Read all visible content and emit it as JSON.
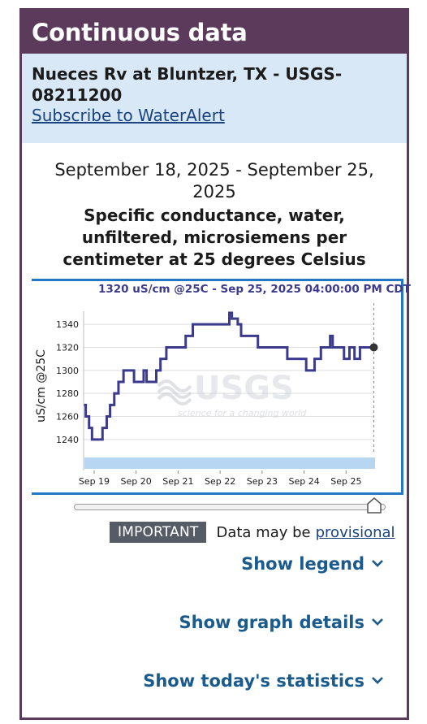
{
  "header": {
    "title": "Continuous data"
  },
  "site": {
    "name": "Nueces Rv at Bluntzer, TX - USGS-08211200",
    "subscribe_link": "Subscribe to WaterAlert"
  },
  "graph": {
    "date_range": "September 18, 2025 - September 25, 2025",
    "parameter_title": "Specific conductance, water, unfiltered, microsiemens per centimeter at 25 degrees Celsius",
    "tooltip": "1320 uS/cm @25C - Sep 25, 2025 04:00:00 PM CDT",
    "watermark_logo": "USGS",
    "watermark_tagline": "science for a changing world"
  },
  "chart_data": {
    "type": "line",
    "ylabel": "uS/cm @25C",
    "xlabel": "",
    "ylim": [
      1230,
      1350
    ],
    "yticks": [
      1240,
      1260,
      1280,
      1300,
      1320,
      1340
    ],
    "xticks": [
      "Sep 19",
      "Sep 20",
      "Sep 21",
      "Sep 22",
      "Sep 23",
      "Sep 24",
      "Sep 25"
    ],
    "x_range_days": [
      18.75,
      25.67
    ],
    "grid": true,
    "series": [
      {
        "color": "#3c3a8c",
        "points": [
          [
            18.76,
            1270
          ],
          [
            18.8,
            1260
          ],
          [
            18.88,
            1250
          ],
          [
            18.95,
            1240
          ],
          [
            19.15,
            1240
          ],
          [
            19.2,
            1250
          ],
          [
            19.3,
            1260
          ],
          [
            19.38,
            1270
          ],
          [
            19.48,
            1280
          ],
          [
            19.58,
            1290
          ],
          [
            19.7,
            1300
          ],
          [
            19.88,
            1300
          ],
          [
            19.95,
            1290
          ],
          [
            20.1,
            1290
          ],
          [
            20.18,
            1300
          ],
          [
            20.25,
            1290
          ],
          [
            20.4,
            1290
          ],
          [
            20.48,
            1300
          ],
          [
            20.58,
            1310
          ],
          [
            20.72,
            1320
          ],
          [
            21.0,
            1320
          ],
          [
            21.1,
            1320
          ],
          [
            21.18,
            1330
          ],
          [
            21.35,
            1340
          ],
          [
            22.2,
            1340
          ],
          [
            22.22,
            1350
          ],
          [
            22.28,
            1345
          ],
          [
            22.35,
            1345
          ],
          [
            22.42,
            1340
          ],
          [
            22.5,
            1330
          ],
          [
            22.7,
            1330
          ],
          [
            22.9,
            1320
          ],
          [
            23.4,
            1320
          ],
          [
            23.55,
            1320
          ],
          [
            23.6,
            1310
          ],
          [
            23.95,
            1310
          ],
          [
            24.05,
            1300
          ],
          [
            24.2,
            1300
          ],
          [
            24.25,
            1310
          ],
          [
            24.4,
            1320
          ],
          [
            24.6,
            1320
          ],
          [
            24.62,
            1330
          ],
          [
            24.68,
            1320
          ],
          [
            24.92,
            1320
          ],
          [
            24.95,
            1310
          ],
          [
            25.05,
            1310
          ],
          [
            25.08,
            1320
          ],
          [
            25.15,
            1320
          ],
          [
            25.2,
            1310
          ],
          [
            25.3,
            1310
          ],
          [
            25.33,
            1320
          ],
          [
            25.65,
            1320
          ]
        ]
      }
    ],
    "cursor": {
      "x": 25.66,
      "y": 1320
    },
    "band_color": "#b7d6f2"
  },
  "notice": {
    "tag": "IMPORTANT",
    "text": "Data may be",
    "link": "provisional"
  },
  "actions": {
    "show_legend": "Show legend",
    "show_graph_details": "Show graph details",
    "show_todays_statistics": "Show today's statistics"
  }
}
